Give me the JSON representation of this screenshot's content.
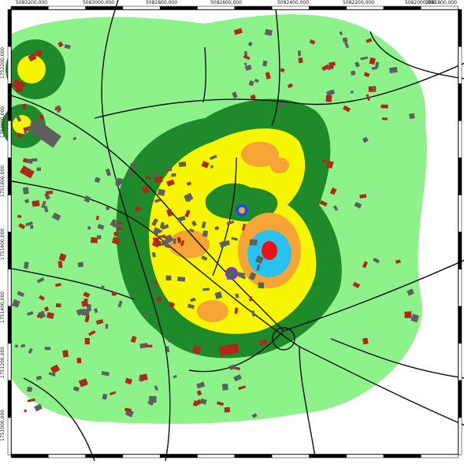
{
  "colors": {
    "background": "#ffffff",
    "zone_lightgreen": "#8ef28a",
    "zone_darkgreen": "#1f8a2a",
    "zone_yellow": "#f7f500",
    "zone_orange": "#f5a535",
    "zone_cyan": "#29c2f0",
    "zone_red": "#ee1111",
    "building_gray": "#5f5f5f",
    "building_red": "#b2271c",
    "road": "#111111",
    "frame": "#000000"
  },
  "axes": {
    "top_ticks": [
      {
        "label": "5083200,000",
        "pos": 0.05
      },
      {
        "label": "5083000,000",
        "pos": 0.22
      },
      {
        "label": "5082800,000",
        "pos": 0.395
      },
      {
        "label": "5082600,000",
        "pos": 0.57
      },
      {
        "label": "5082400,000",
        "pos": 0.745
      },
      {
        "label": "5082200,000",
        "pos": 0.92
      }
    ],
    "top_ticks_extra": [
      {
        "label": "5082000,000",
        "pos": 0
      },
      {
        "label": "5081800,000",
        "pos": 0
      }
    ],
    "left_ticks": [
      {
        "label": "1752200,000",
        "pos": 0.12
      },
      {
        "label": "1752000,000",
        "pos": 0.26
      },
      {
        "label": "1751800,000",
        "pos": 0.38
      },
      {
        "label": "1751600,000",
        "pos": 0.52
      },
      {
        "label": "1751400,000",
        "pos": 0.64
      },
      {
        "label": "1751200,000",
        "pos": 0.77
      },
      {
        "label": "1751000,000",
        "pos": 0.9
      }
    ]
  },
  "markers": [
    {
      "name": "blue-orange-source-marker",
      "color_outer": "#1d4fd8",
      "color_inner": "#f5a535"
    },
    {
      "name": "purple-green-source-marker",
      "color_outer": "#8a2fbf",
      "color_inner": "#1f8a2a"
    }
  ]
}
